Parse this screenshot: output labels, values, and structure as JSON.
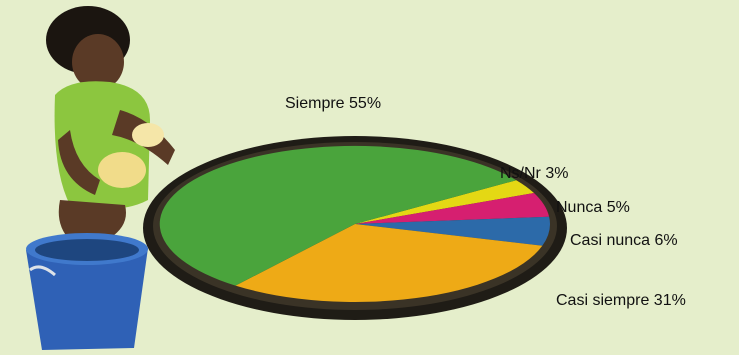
{
  "chart_data": {
    "type": "pie",
    "title": "",
    "slices": [
      {
        "label": "Siempre 55%",
        "value": 55,
        "color": "#4aa43c"
      },
      {
        "label": "Casi siempre 31%",
        "value": 31,
        "color": "#eeaa16"
      },
      {
        "label": "Casi nunca 6%",
        "value": 6,
        "color": "#2c6aa9"
      },
      {
        "label": "Nunca 5%",
        "value": 5,
        "color": "#d61f70"
      },
      {
        "label": "Ns/Nr 3%",
        "value": 3,
        "color": "#e4d814"
      }
    ]
  },
  "colors": {
    "background": "#e5eecb",
    "tray_rim": "#1f1c16",
    "bucket": "#2f61b6"
  },
  "illustration": {
    "description_icon": "woman-with-cassava-and-drying-tray-photo"
  }
}
